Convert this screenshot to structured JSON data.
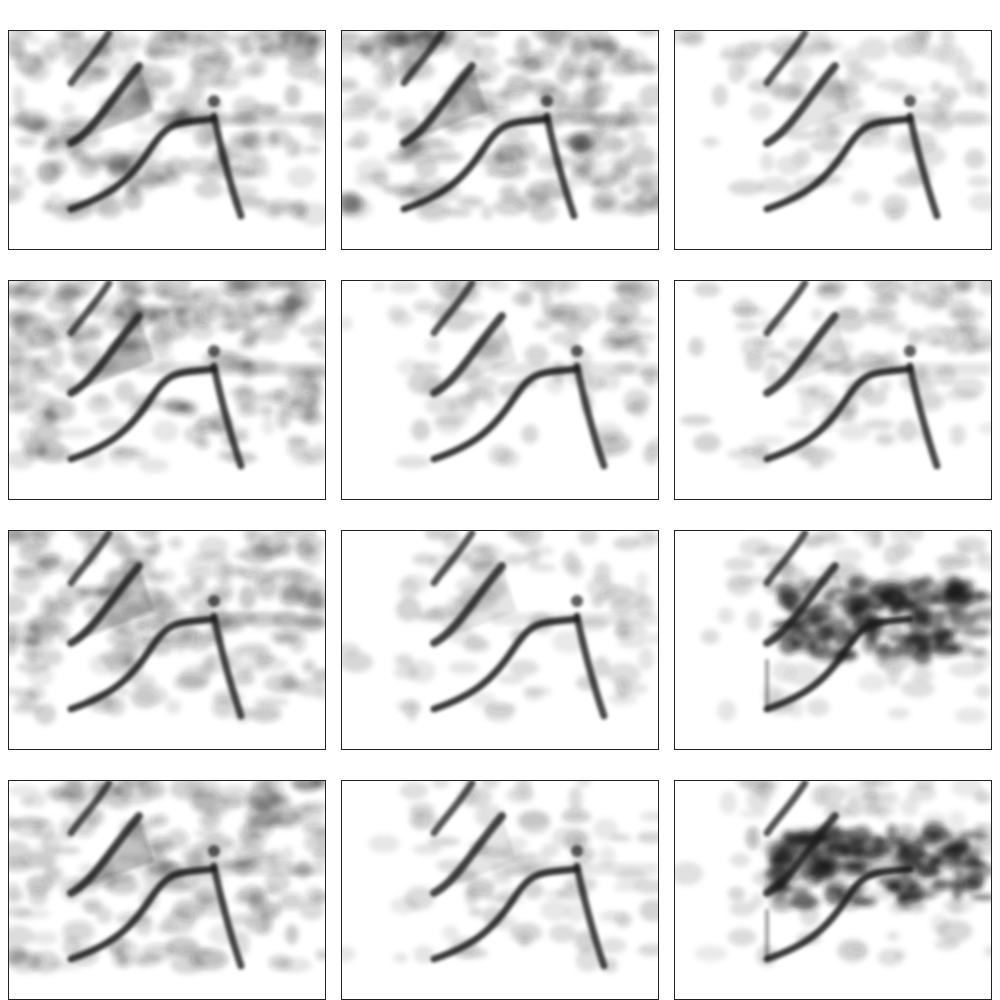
{
  "figure": {
    "rows": 4,
    "cols": 3,
    "description_type": "grid of grayscale spectrogram panels",
    "colors": {
      "ink": "#1a1a1a",
      "background": "#ffffff",
      "frame": "#222222"
    },
    "panels": [
      {
        "id": 1,
        "noise": 0.75,
        "late_onset": false,
        "broadband": false,
        "upper": true,
        "mid": true,
        "lower": true,
        "down_sweep": true
      },
      {
        "id": 2,
        "noise": 0.8,
        "late_onset": false,
        "broadband": false,
        "upper": true,
        "mid": true,
        "lower": true,
        "down_sweep": true
      },
      {
        "id": 3,
        "noise": 0.35,
        "late_onset": true,
        "broadband": false,
        "upper": true,
        "mid": true,
        "lower": true,
        "down_sweep": true
      },
      {
        "id": 4,
        "noise": 0.75,
        "late_onset": false,
        "broadband": false,
        "upper": true,
        "mid": true,
        "lower": true,
        "down_sweep": true
      },
      {
        "id": 5,
        "noise": 0.45,
        "late_onset": true,
        "broadband": false,
        "upper": true,
        "mid": true,
        "lower": true,
        "down_sweep": true
      },
      {
        "id": 6,
        "noise": 0.45,
        "late_onset": true,
        "broadband": false,
        "upper": true,
        "mid": true,
        "lower": true,
        "down_sweep": true
      },
      {
        "id": 7,
        "noise": 0.7,
        "late_onset": false,
        "broadband": false,
        "upper": true,
        "mid": true,
        "lower": true,
        "down_sweep": true
      },
      {
        "id": 8,
        "noise": 0.4,
        "late_onset": true,
        "broadband": false,
        "upper": true,
        "mid": true,
        "lower": true,
        "down_sweep": true
      },
      {
        "id": 9,
        "noise": 0.3,
        "late_onset": true,
        "broadband": true,
        "upper": true,
        "mid": true,
        "lower": true,
        "down_sweep": false
      },
      {
        "id": 10,
        "noise": 0.7,
        "late_onset": false,
        "broadband": false,
        "upper": true,
        "mid": true,
        "lower": true,
        "down_sweep": true
      },
      {
        "id": 11,
        "noise": 0.4,
        "late_onset": true,
        "broadband": false,
        "upper": true,
        "mid": true,
        "lower": true,
        "down_sweep": true
      },
      {
        "id": 12,
        "noise": 0.4,
        "late_onset": true,
        "broadband": true,
        "upper": true,
        "mid": true,
        "lower": true,
        "down_sweep": false
      }
    ]
  }
}
